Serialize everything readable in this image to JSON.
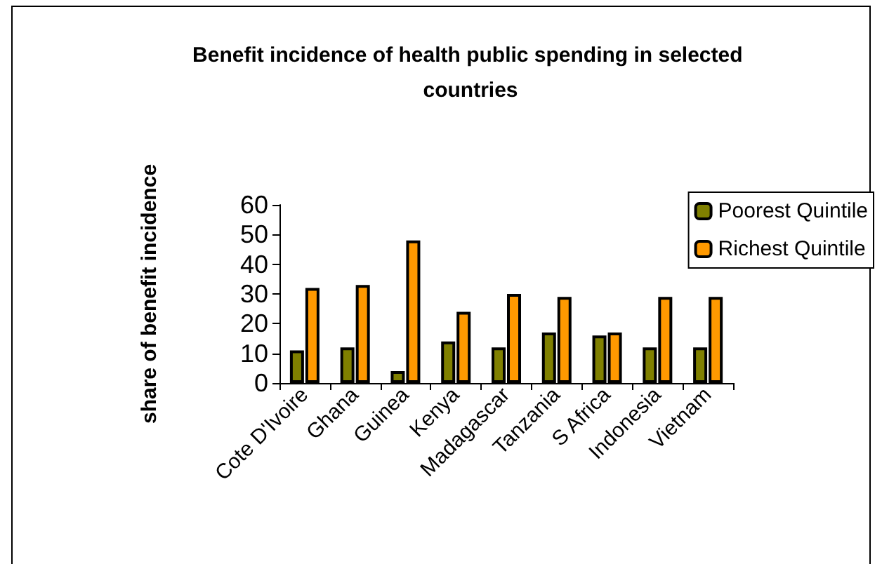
{
  "chart_data": {
    "type": "bar",
    "title": "Benefit incidence of health public spending in selected countries",
    "ylabel": "share of benefit incidence",
    "categories": [
      "Cote D'Ivoire",
      "Ghana",
      "Guinea",
      "Kenya",
      "Madagascar",
      "Tanzania",
      "S Africa",
      "Indonesia",
      "Vietnam"
    ],
    "series": [
      {
        "name": "Poorest Quintile",
        "color": "#808000",
        "values": [
          11,
          12,
          4,
          14,
          12,
          17,
          16,
          12,
          12
        ]
      },
      {
        "name": "Richest Quintile",
        "color": "#ff9900",
        "values": [
          32,
          33,
          48,
          24,
          30,
          29,
          17,
          29,
          29
        ]
      }
    ],
    "ylim": [
      0,
      60
    ],
    "yticks": [
      0,
      10,
      20,
      30,
      40,
      50,
      60
    ],
    "grid": false,
    "legend": "top right"
  }
}
